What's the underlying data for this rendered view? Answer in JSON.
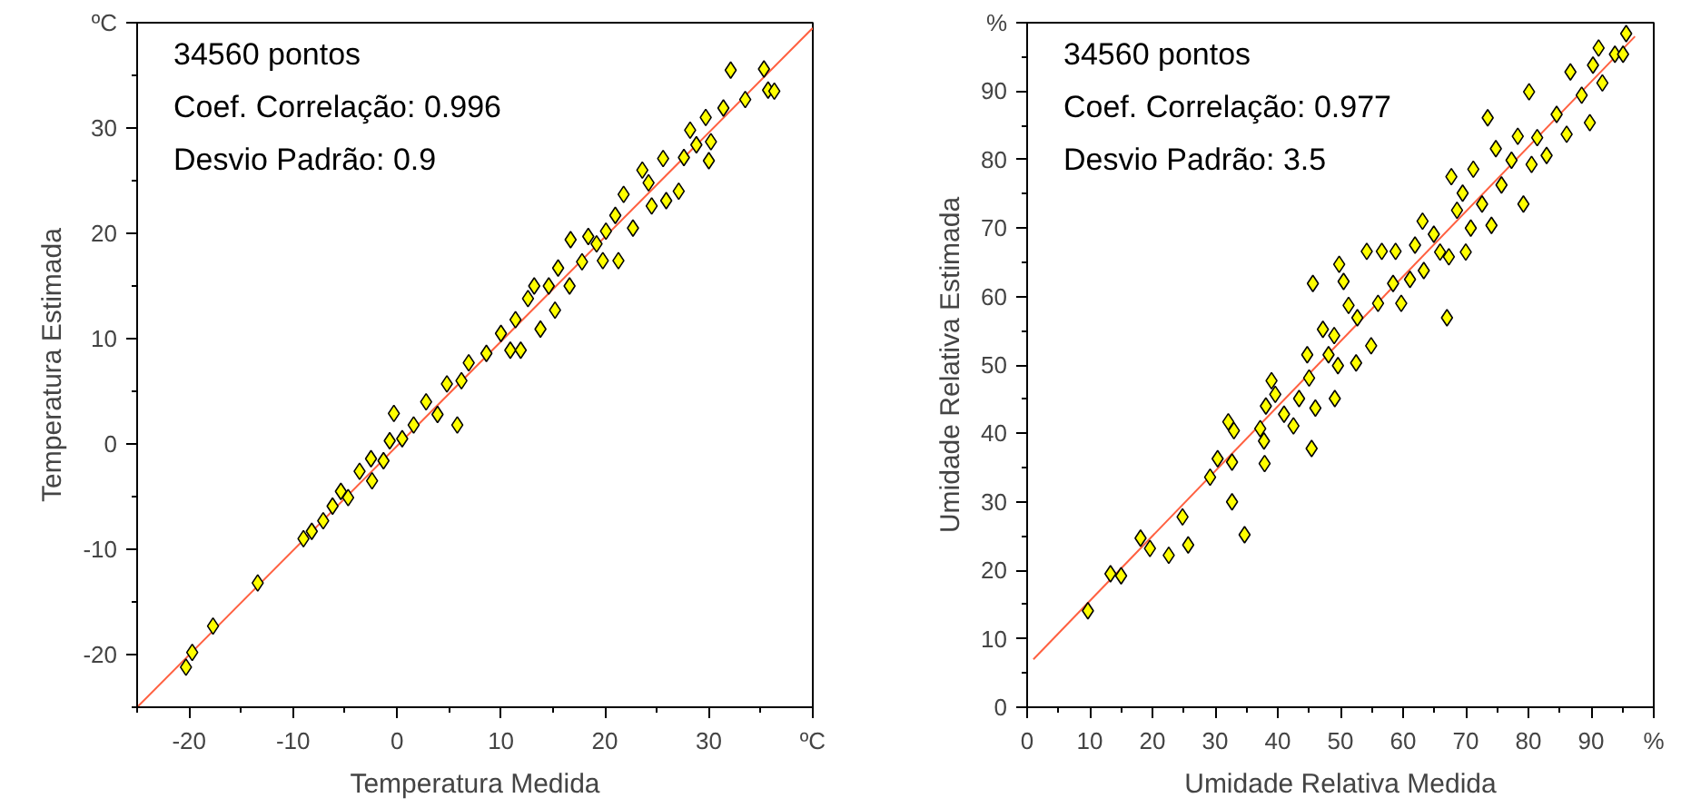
{
  "chart_data": [
    {
      "type": "scatter",
      "xlabel": "Temperatura Medida",
      "ylabel": "Temperatura Estimada",
      "annotations": [
        "34560 pontos",
        "Coef. Correlação: 0.996",
        "Desvio Padrão: 0.9"
      ],
      "xlim": [
        -25,
        40
      ],
      "ylim": [
        -25,
        40
      ],
      "grid": false,
      "xticks": [
        {
          "value": -25,
          "label": null
        },
        -20,
        {
          "value": -15,
          "label": null
        },
        -10,
        {
          "value": -5,
          "label": null
        },
        0,
        {
          "value": 5,
          "label": null
        },
        10,
        {
          "value": 15,
          "label": null
        },
        20,
        {
          "value": 25,
          "label": null
        },
        30,
        {
          "value": 35,
          "label": null
        },
        {
          "value": 40,
          "label": "ºC"
        }
      ],
      "yticks": [
        {
          "value": -25,
          "label": null
        },
        -20,
        {
          "value": -15,
          "label": null
        },
        -10,
        {
          "value": -5,
          "label": null
        },
        0,
        {
          "value": 5,
          "label": null
        },
        10,
        {
          "value": 15,
          "label": null
        },
        20,
        {
          "value": 25,
          "label": null
        },
        30,
        {
          "value": 35,
          "label": null
        },
        {
          "value": 40,
          "label": "ºC"
        }
      ],
      "series": [
        {
          "type": "line",
          "color": "#ff6040",
          "x": [
            -25,
            40
          ],
          "values": [
            -25,
            39.5
          ]
        },
        {
          "marker": "diamond",
          "color": "#ffff00",
          "x": [
            -20.3,
            -19.7,
            -17.7,
            -13.4,
            -9.0,
            -8.2,
            -7.1,
            -6.2,
            -5.4,
            -4.7,
            -3.6,
            -2.4,
            -2.5,
            -1.3,
            -0.7,
            -0.3,
            0.5,
            1.6,
            2.8,
            3.9,
            4.8,
            5.8,
            6.2,
            6.9,
            8.6,
            10.0,
            10.9,
            11.9,
            11.4,
            12.6,
            13.8,
            14.6,
            15.2,
            15.5,
            16.6,
            16.7,
            17.8,
            18.4,
            19.8,
            20.1,
            21.3,
            21.0,
            21.8,
            22.7,
            23.6,
            24.5,
            25.6,
            25.9,
            27.1,
            27.6,
            28.2,
            29.7,
            30.0,
            30.2,
            31.4,
            32.1,
            33.5,
            35.3,
            35.7,
            36.3,
            13.2,
            19.2,
            24.2,
            28.8
          ],
          "values": [
            -21.2,
            -19.8,
            -17.3,
            -13.2,
            -9.0,
            -8.3,
            -7.3,
            -5.9,
            -4.5,
            -5.1,
            -2.6,
            -3.5,
            -1.4,
            -1.6,
            0.3,
            2.9,
            0.5,
            1.8,
            4.0,
            2.8,
            5.7,
            1.8,
            6.0,
            7.7,
            8.6,
            10.5,
            8.9,
            8.9,
            11.8,
            13.8,
            10.9,
            15.0,
            12.7,
            16.7,
            15.0,
            19.4,
            17.3,
            19.7,
            17.4,
            20.2,
            17.4,
            21.7,
            23.7,
            20.5,
            26.0,
            22.6,
            27.1,
            23.1,
            24.0,
            27.2,
            29.8,
            31.0,
            26.9,
            28.7,
            31.9,
            35.5,
            32.7,
            35.6,
            33.6,
            33.5,
            15.0,
            19.0,
            24.8,
            28.4
          ]
        }
      ]
    },
    {
      "type": "scatter",
      "xlabel": "Umidade Relativa Medida",
      "ylabel": "Umidade Relativa Estimada",
      "annotations": [
        "34560 pontos",
        "Coef. Correlação: 0.977",
        "Desvio Padrão: 3.5"
      ],
      "xlim": [
        0,
        100
      ],
      "ylim": [
        0,
        100
      ],
      "grid": false,
      "xticks": [
        0,
        {
          "value": 5,
          "label": null
        },
        10,
        {
          "value": 15,
          "label": null
        },
        20,
        {
          "value": 25,
          "label": null
        },
        30,
        {
          "value": 35,
          "label": null
        },
        40,
        {
          "value": 45,
          "label": null
        },
        50,
        {
          "value": 55,
          "label": null
        },
        60,
        {
          "value": 65,
          "label": null
        },
        70,
        {
          "value": 75,
          "label": null
        },
        80,
        {
          "value": 85,
          "label": null
        },
        90,
        {
          "value": 95,
          "label": null
        },
        {
          "value": 100,
          "label": "%"
        }
      ],
      "yticks": [
        0,
        {
          "value": 5,
          "label": null
        },
        10,
        {
          "value": 15,
          "label": null
        },
        20,
        {
          "value": 25,
          "label": null
        },
        30,
        {
          "value": 35,
          "label": null
        },
        40,
        {
          "value": 45,
          "label": null
        },
        50,
        {
          "value": 55,
          "label": null
        },
        60,
        {
          "value": 65,
          "label": null
        },
        70,
        {
          "value": 75,
          "label": null
        },
        80,
        {
          "value": 85,
          "label": null
        },
        90,
        {
          "value": 95,
          "label": null
        },
        {
          "value": 100,
          "label": "%"
        }
      ],
      "series": [
        {
          "type": "line",
          "color": "#ff6040",
          "x": [
            1,
            97
          ],
          "values": [
            7,
            98
          ]
        },
        {
          "marker": "diamond",
          "color": "#ffff00",
          "x": [
            9.7,
            13.3,
            15.0,
            18.1,
            19.6,
            22.6,
            24.8,
            25.7,
            29.2,
            30.4,
            32.1,
            33.0,
            32.7,
            32.7,
            34.7,
            37.2,
            37.8,
            37.9,
            38.1,
            39.0,
            39.6,
            41.0,
            42.5,
            43.4,
            44.7,
            45.0,
            45.4,
            45.6,
            46.0,
            47.2,
            48.1,
            49.0,
            49.1,
            49.6,
            49.8,
            50.5,
            51.3,
            52.5,
            52.7,
            54.2,
            54.9,
            56.0,
            56.6,
            58.4,
            58.8,
            59.7,
            61.1,
            61.9,
            63.1,
            63.3,
            64.9,
            65.9,
            67.0,
            67.3,
            67.7,
            68.6,
            69.5,
            70.0,
            70.8,
            71.2,
            72.6,
            73.5,
            74.1,
            74.8,
            75.7,
            77.3,
            78.3,
            79.2,
            80.1,
            80.5,
            81.4,
            82.9,
            84.5,
            86.1,
            86.7,
            88.5,
            89.8,
            90.3,
            91.2,
            91.8,
            93.8,
            95.6,
            95.1
          ],
          "values": [
            14.1,
            19.5,
            19.2,
            24.7,
            23.2,
            22.2,
            27.8,
            23.7,
            33.6,
            36.3,
            41.7,
            40.4,
            35.8,
            30.0,
            25.2,
            40.7,
            38.9,
            35.6,
            44.0,
            47.7,
            45.7,
            42.8,
            41.1,
            45.1,
            51.5,
            48.1,
            37.8,
            61.9,
            43.7,
            55.2,
            51.5,
            54.3,
            45.1,
            49.9,
            64.7,
            62.2,
            58.7,
            50.3,
            56.9,
            66.6,
            52.8,
            59.0,
            66.6,
            61.9,
            66.6,
            59.0,
            62.5,
            67.5,
            71.0,
            63.8,
            69.1,
            66.5,
            56.9,
            65.8,
            77.5,
            72.6,
            75.1,
            66.5,
            70.0,
            78.6,
            73.5,
            86.1,
            70.4,
            81.6,
            76.3,
            79.9,
            83.4,
            73.5,
            89.9,
            79.3,
            83.2,
            80.6,
            86.6,
            83.7,
            92.8,
            89.4,
            85.4,
            93.8,
            96.3,
            91.2,
            95.4,
            98.4,
            95.4
          ]
        }
      ]
    }
  ]
}
